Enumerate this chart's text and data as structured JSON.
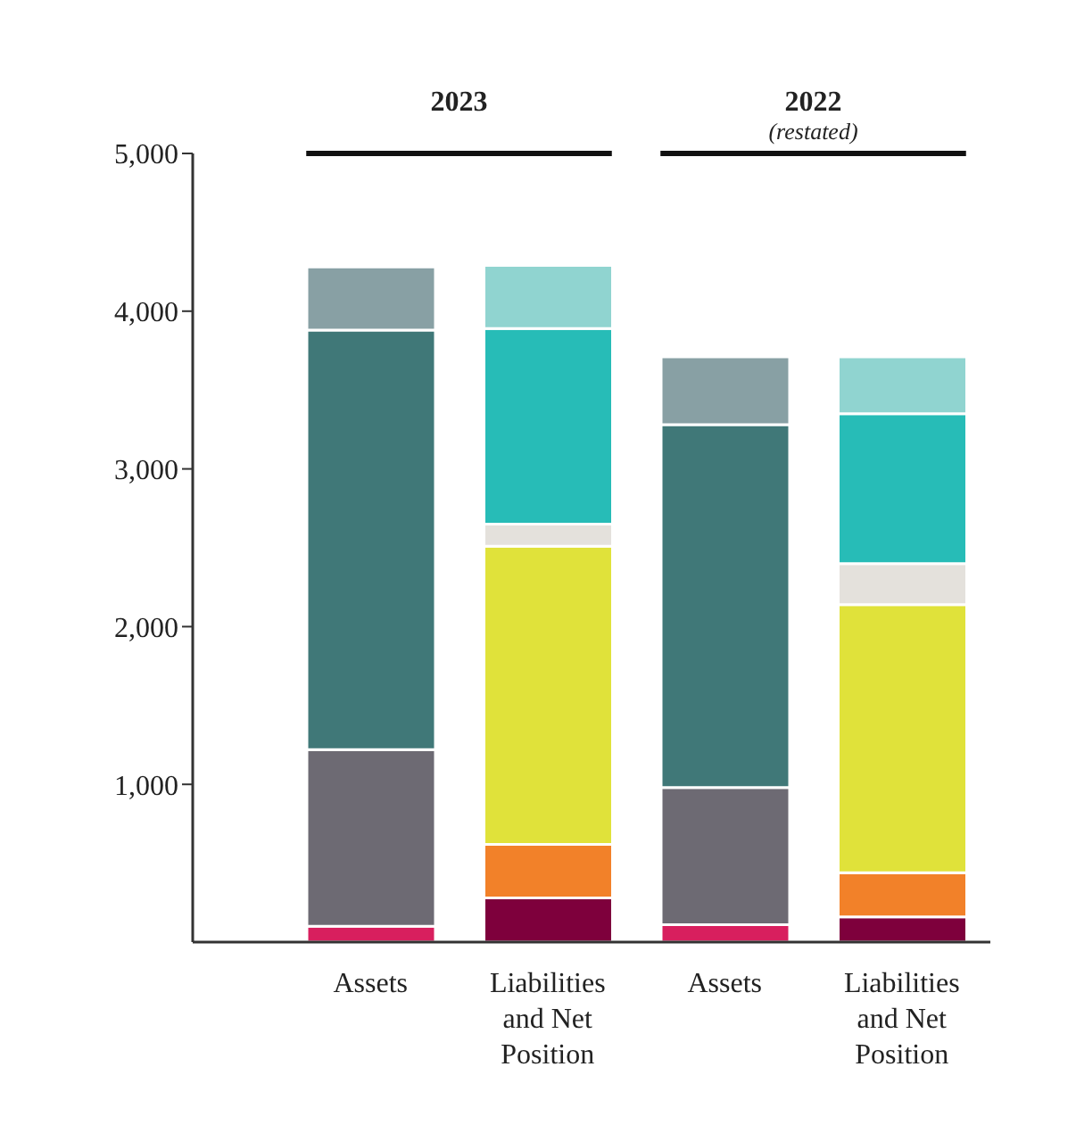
{
  "chart_data": {
    "type": "bar",
    "stacked": true,
    "categories": [
      "Assets",
      "Liabilities and Net Position",
      "Assets",
      "Liabilities and Net Position"
    ],
    "series": [
      {
        "color": "#d81f5e",
        "values": [
          100,
          null,
          110,
          null
        ]
      },
      {
        "color": "#6d6a73",
        "values": [
          1120,
          null,
          870,
          null
        ]
      },
      {
        "color": "#407878",
        "values": [
          2660,
          null,
          2300,
          null
        ]
      },
      {
        "color": "#88a0a4",
        "values": [
          400,
          null,
          430,
          null
        ]
      },
      {
        "color": "#7e003c",
        "values": [
          null,
          280,
          null,
          160
        ]
      },
      {
        "color": "#f28129",
        "values": [
          null,
          340,
          null,
          280
        ]
      },
      {
        "color": "#e0e23a",
        "values": [
          null,
          1890,
          null,
          1700
        ]
      },
      {
        "color": "#e4e1dc",
        "values": [
          null,
          140,
          null,
          260
        ]
      },
      {
        "color": "#27bcb7",
        "values": [
          null,
          1240,
          null,
          950
        ]
      },
      {
        "color": "#90d4d0",
        "values": [
          null,
          400,
          null,
          360
        ]
      }
    ],
    "ylim": [
      0,
      5000
    ],
    "yticks": [
      {
        "value": 1000,
        "label": "1,000"
      },
      {
        "value": 2000,
        "label": "2,000"
      },
      {
        "value": 3000,
        "label": "3,000"
      },
      {
        "value": 4000,
        "label": "4,000"
      },
      {
        "value": 5000,
        "label": "5,000"
      }
    ],
    "grid": false,
    "legend": false,
    "annotations": [
      "2023",
      "2022",
      "(restated)"
    ]
  }
}
